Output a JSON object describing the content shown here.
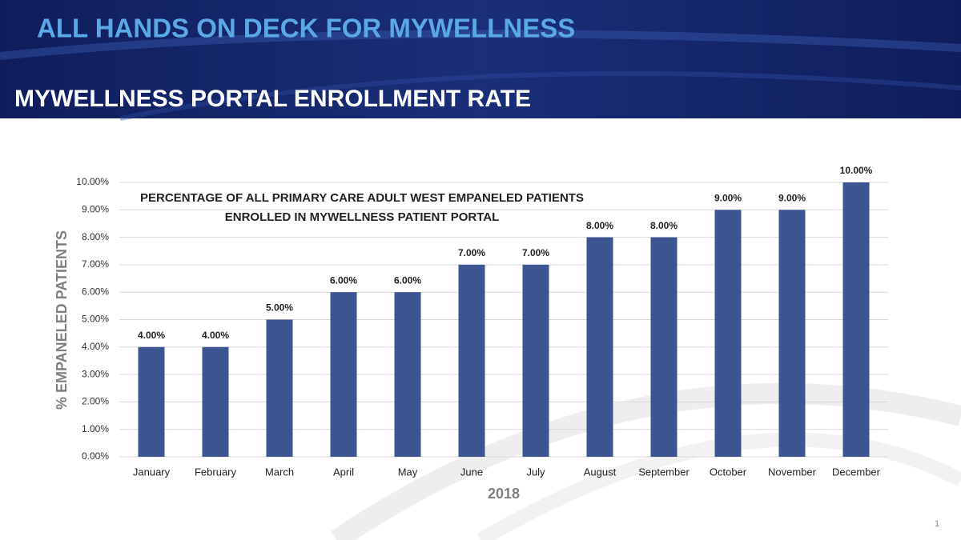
{
  "header": {
    "title": "ALL HANDS ON DECK FOR MYWELLNESS",
    "subtitle": "MYWELLNESS PORTAL ENROLLMENT RATE"
  },
  "page_number": "1",
  "chart_data": {
    "type": "bar",
    "title": [
      "PERCENTAGE OF ALL PRIMARY CARE ADULT WEST EMPANELED PATIENTS",
      "ENROLLED IN MYWELLNESS PATIENT PORTAL"
    ],
    "x_label": "2018",
    "y_label": "% EMPANELED PATIENTS",
    "categories": [
      "January",
      "February",
      "March",
      "April",
      "May",
      "June",
      "July",
      "August",
      "September",
      "October",
      "November",
      "December"
    ],
    "values": [
      4,
      4,
      5,
      6,
      6,
      7,
      7,
      8,
      8,
      9,
      9,
      10
    ],
    "value_labels": [
      "4.00%",
      "4.00%",
      "5.00%",
      "6.00%",
      "6.00%",
      "7.00%",
      "7.00%",
      "8.00%",
      "8.00%",
      "9.00%",
      "9.00%",
      "10.00%"
    ],
    "color": "#3c5490",
    "ylim": [
      0,
      10
    ],
    "yticks": [
      {
        "value": 0,
        "label": "0.00%"
      },
      {
        "value": 1,
        "label": "1.00%"
      },
      {
        "value": 2,
        "label": "2.00%"
      },
      {
        "value": 3,
        "label": "3.00%"
      },
      {
        "value": 4,
        "label": "4.00%"
      },
      {
        "value": 5,
        "label": "5.00%"
      },
      {
        "value": 6,
        "label": "6.00%"
      },
      {
        "value": 7,
        "label": "7.00%"
      },
      {
        "value": 8,
        "label": "8.00%"
      },
      {
        "value": 9,
        "label": "9.00%"
      },
      {
        "value": 10,
        "label": "10.00%"
      }
    ],
    "grid": true
  }
}
